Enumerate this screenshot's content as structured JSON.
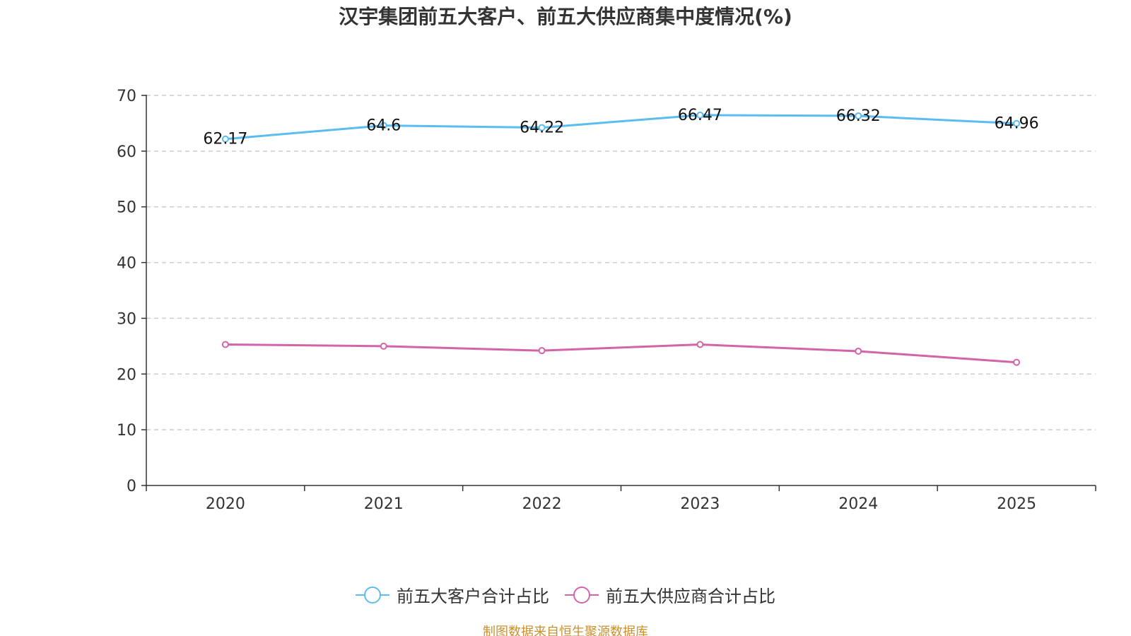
{
  "chart_data": {
    "type": "line",
    "title": "汉宇集团前五大客户、前五大供应商集中度情况(%)",
    "xlabel": "",
    "ylabel": "",
    "categories": [
      "2020",
      "2021",
      "2022",
      "2023",
      "2024",
      "2025"
    ],
    "ylim": [
      0,
      70
    ],
    "yticks": [
      0,
      10,
      20,
      30,
      40,
      50,
      60,
      70
    ],
    "grid": true,
    "legend_position": "bottom-center",
    "series": [
      {
        "name": "前五大客户合计占比",
        "color": "#5bbcf0",
        "values": [
          62.17,
          64.6,
          64.22,
          66.47,
          66.32,
          64.96
        ],
        "labels": [
          "62.17",
          "64.6",
          "64.22",
          "66.47",
          "66.32",
          "64.96"
        ],
        "show_labels": true
      },
      {
        "name": "前五大供应商合计占比",
        "color": "#d464a8",
        "values": [
          25.3,
          25.0,
          24.2,
          25.3,
          24.1,
          22.1
        ],
        "show_labels": false
      }
    ]
  },
  "source_note": "制图数据来自恒生聚源数据库"
}
